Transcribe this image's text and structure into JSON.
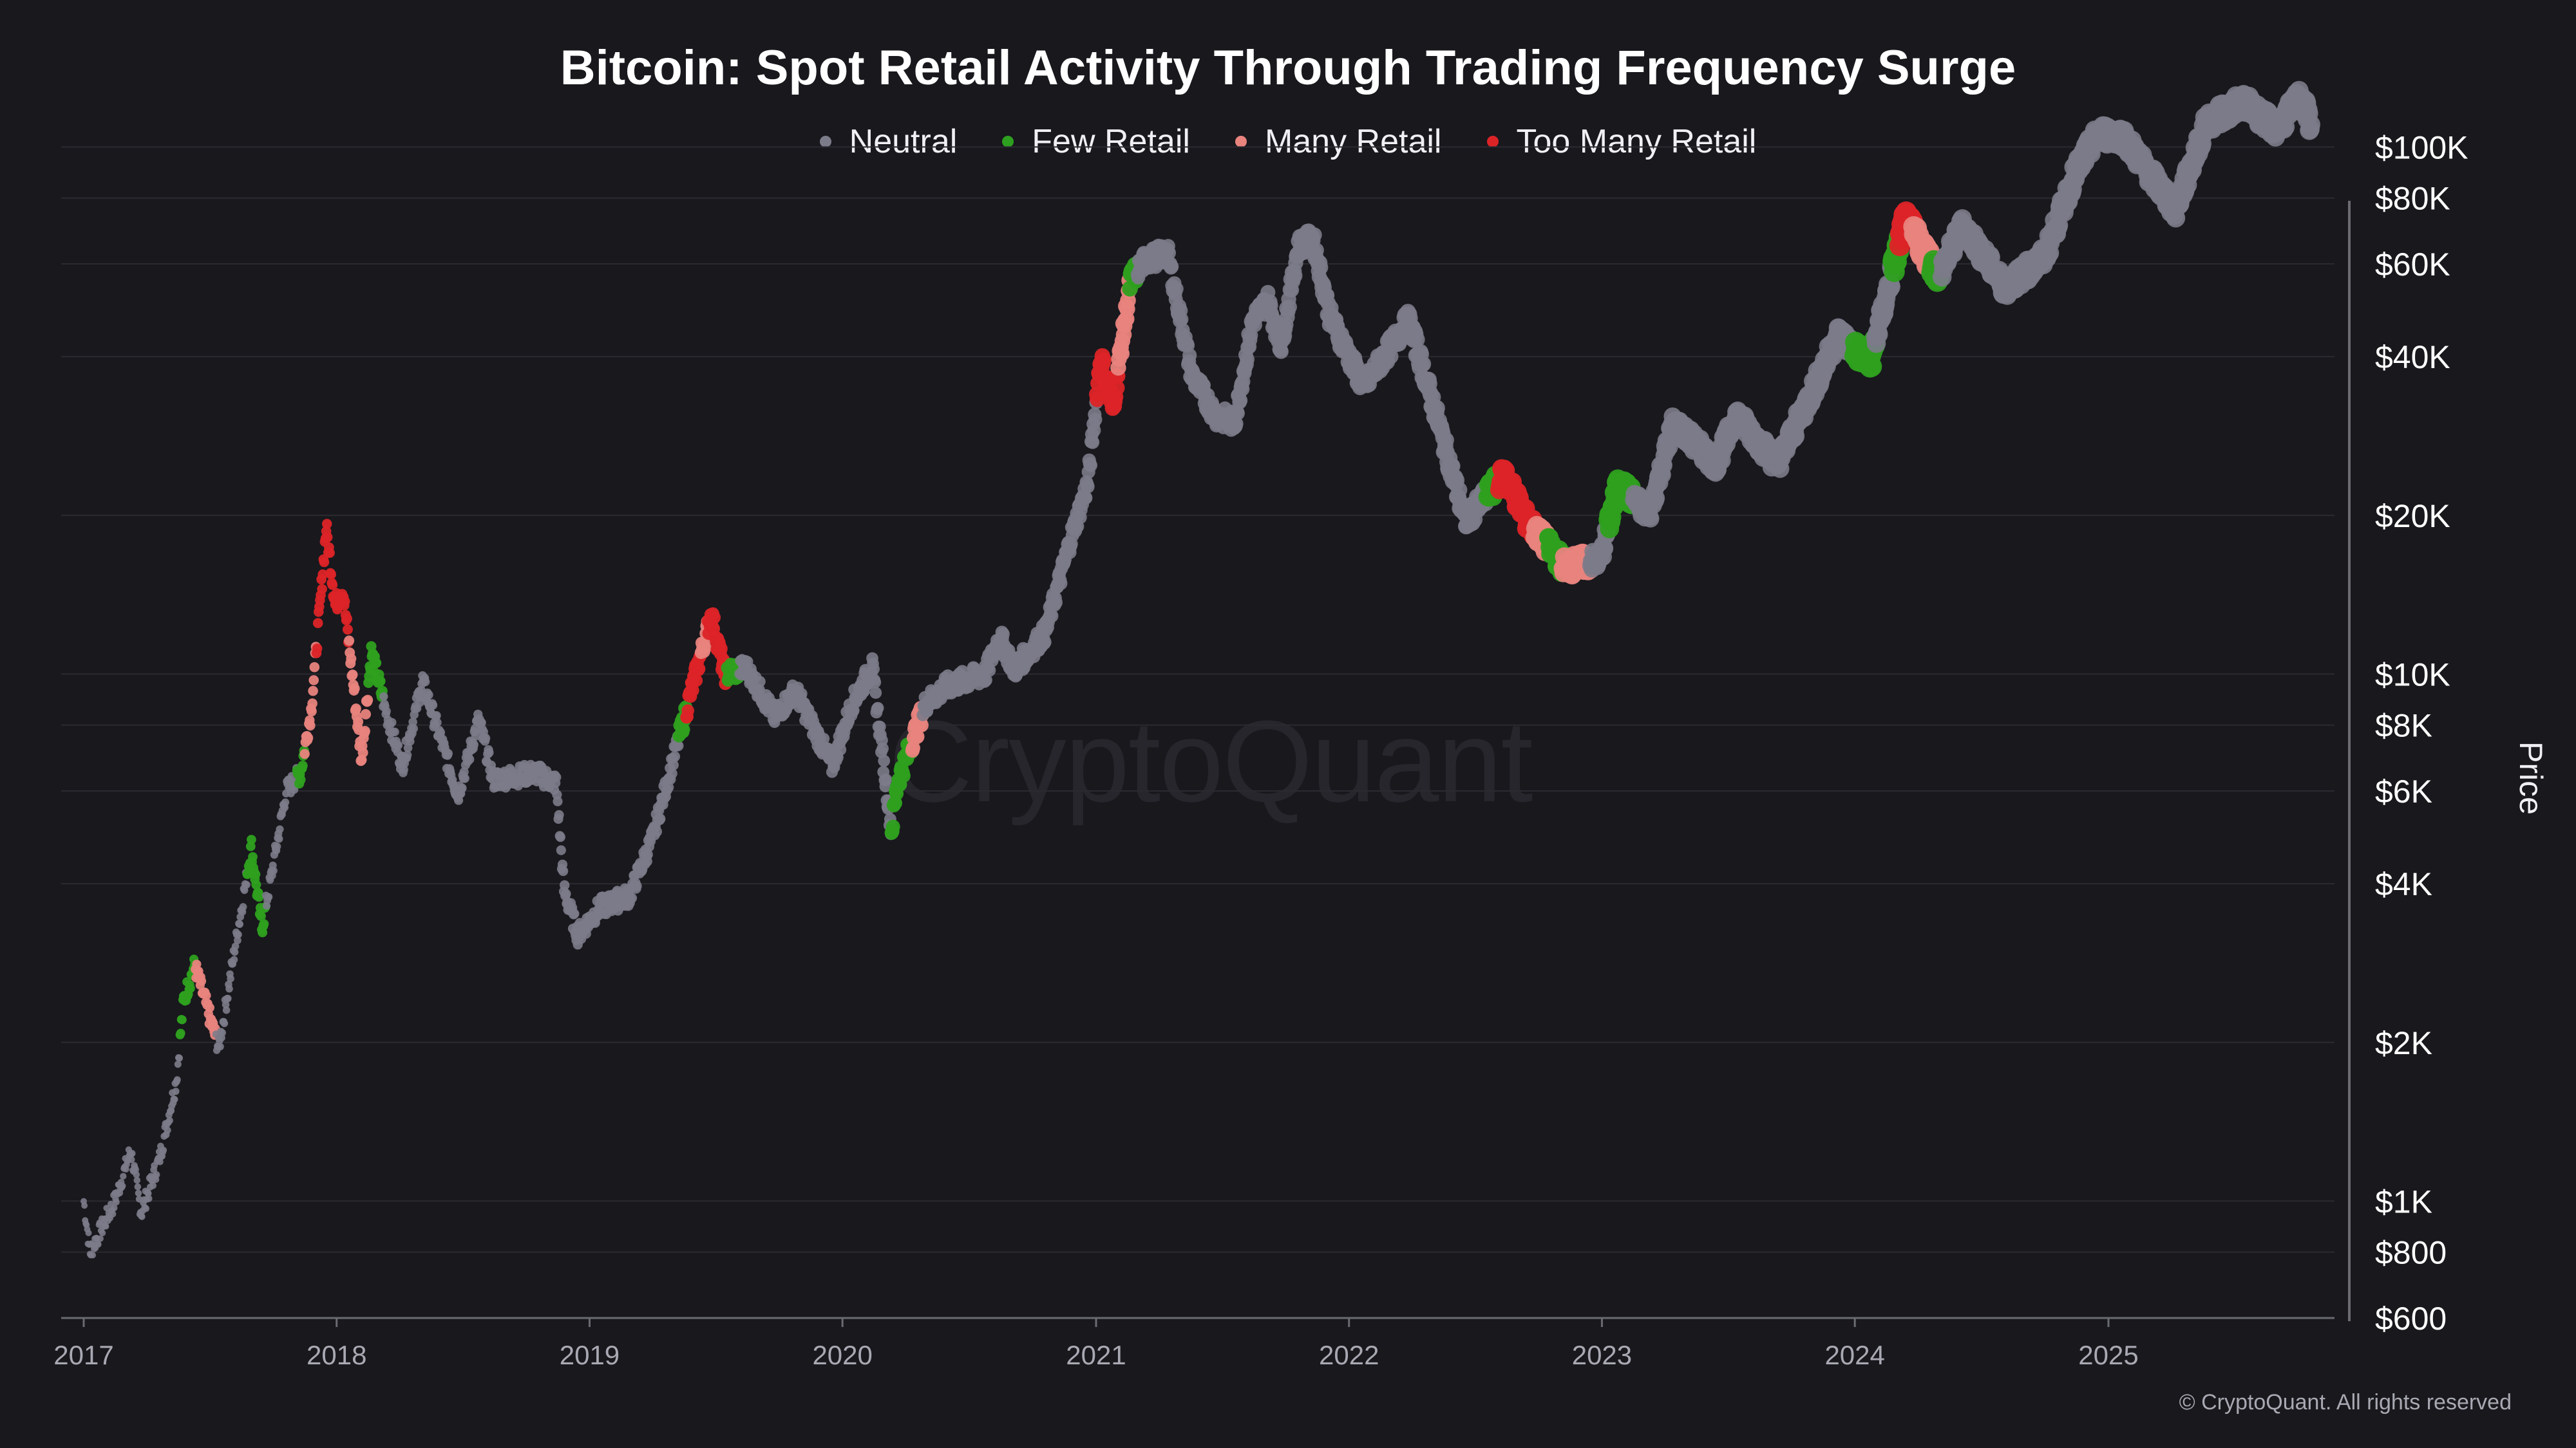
{
  "colors": {
    "background": "#18181d",
    "neutral": "#7c7b89",
    "few_retail": "#2ea01f",
    "many_retail": "#e8837d",
    "too_many_retail": "#dc2427",
    "grid": "#2a2a30",
    "axis": "#6a6a72"
  },
  "watermark": "CryptoQuant",
  "copyright": "© CryptoQuant. All rights reserved",
  "chart_data": {
    "type": "scatter",
    "title": "Bitcoin: Spot Retail Activity Through Trading Frequency Surge",
    "ylabel": "Price",
    "yscale": "log",
    "ylim": [
      600,
      130000
    ],
    "xlim": [
      "2017-01-01",
      "2025-10-31"
    ],
    "x_ticks": [
      "2017",
      "2018",
      "2019",
      "2020",
      "2021",
      "2022",
      "2023",
      "2024",
      "2025"
    ],
    "y_ticks": [
      {
        "value": 600,
        "label": "$600"
      },
      {
        "value": 800,
        "label": "$800"
      },
      {
        "value": 1000,
        "label": "$1K"
      },
      {
        "value": 2000,
        "label": "$2K"
      },
      {
        "value": 4000,
        "label": "$4K"
      },
      {
        "value": 6000,
        "label": "$6K"
      },
      {
        "value": 8000,
        "label": "$8K"
      },
      {
        "value": 10000,
        "label": "$10K"
      },
      {
        "value": 20000,
        "label": "$20K"
      },
      {
        "value": 40000,
        "label": "$40K"
      },
      {
        "value": 60000,
        "label": "$60K"
      },
      {
        "value": 80000,
        "label": "$80K"
      },
      {
        "value": 100000,
        "label": "$100K"
      }
    ],
    "legend_position": "top-center",
    "grid": true,
    "series": [
      {
        "name": "Neutral",
        "color": "#7c7b89"
      },
      {
        "name": "Few Retail",
        "color": "#2ea01f"
      },
      {
        "name": "Many Retail",
        "color": "#e8837d"
      },
      {
        "name": "Too Many Retail",
        "color": "#dc2427"
      }
    ],
    "price_path": [
      [
        "2017-01-01",
        1000
      ],
      [
        "2017-01-10",
        800
      ],
      [
        "2017-02-15",
        1000
      ],
      [
        "2017-03-10",
        1250
      ],
      [
        "2017-03-25",
        950
      ],
      [
        "2017-04-20",
        1200
      ],
      [
        "2017-05-15",
        1700
      ],
      [
        "2017-05-25",
        2400
      ],
      [
        "2017-06-10",
        2800
      ],
      [
        "2017-07-15",
        1950
      ],
      [
        "2017-08-05",
        2900
      ],
      [
        "2017-08-31",
        4700
      ],
      [
        "2017-09-15",
        3300
      ],
      [
        "2017-10-01",
        4300
      ],
      [
        "2017-10-20",
        6000
      ],
      [
        "2017-11-10",
        6500
      ],
      [
        "2017-11-25",
        8500
      ],
      [
        "2017-12-07",
        13000
      ],
      [
        "2017-12-17",
        19000
      ],
      [
        "2017-12-30",
        13500
      ],
      [
        "2018-01-10",
        14500
      ],
      [
        "2018-02-06",
        6900
      ],
      [
        "2018-02-20",
        11000
      ],
      [
        "2018-03-15",
        8300
      ],
      [
        "2018-04-06",
        6700
      ],
      [
        "2018-05-05",
        9700
      ],
      [
        "2018-06-25",
        5900
      ],
      [
        "2018-07-25",
        8200
      ],
      [
        "2018-08-15",
        6300
      ],
      [
        "2018-10-15",
        6500
      ],
      [
        "2018-11-14",
        6200
      ],
      [
        "2018-11-25",
        3900
      ],
      [
        "2018-12-15",
        3200
      ],
      [
        "2019-01-15",
        3600
      ],
      [
        "2019-02-28",
        3800
      ],
      [
        "2019-04-02",
        4900
      ],
      [
        "2019-05-15",
        8000
      ],
      [
        "2019-06-26",
        13000
      ],
      [
        "2019-07-15",
        10000
      ],
      [
        "2019-08-15",
        10300
      ],
      [
        "2019-09-25",
        8300
      ],
      [
        "2019-10-25",
        9300
      ],
      [
        "2019-12-17",
        6700
      ],
      [
        "2020-01-15",
        8800
      ],
      [
        "2020-02-13",
        10300
      ],
      [
        "2020-03-12",
        5000
      ],
      [
        "2020-03-20",
        6200
      ],
      [
        "2020-04-30",
        8800
      ],
      [
        "2020-06-01",
        9500
      ],
      [
        "2020-07-25",
        10000
      ],
      [
        "2020-08-15",
        11800
      ],
      [
        "2020-09-05",
        10200
      ],
      [
        "2020-10-20",
        12000
      ],
      [
        "2020-11-25",
        18000
      ],
      [
        "2020-12-20",
        23000
      ],
      [
        "2021-01-08",
        40000
      ],
      [
        "2021-01-25",
        32000
      ],
      [
        "2021-02-20",
        56000
      ],
      [
        "2021-03-13",
        61000
      ],
      [
        "2021-04-14",
        63000
      ],
      [
        "2021-05-19",
        37000
      ],
      [
        "2021-06-22",
        31000
      ],
      [
        "2021-07-20",
        30000
      ],
      [
        "2021-08-15",
        47000
      ],
      [
        "2021-09-06",
        51000
      ],
      [
        "2021-09-25",
        42000
      ],
      [
        "2021-10-20",
        65000
      ],
      [
        "2021-11-10",
        67000
      ],
      [
        "2021-12-04",
        48000
      ],
      [
        "2022-01-22",
        35000
      ],
      [
        "2022-03-28",
        47000
      ],
      [
        "2022-05-10",
        30000
      ],
      [
        "2022-06-18",
        19500
      ],
      [
        "2022-08-14",
        24000
      ],
      [
        "2022-09-15",
        19500
      ],
      [
        "2022-11-09",
        16000
      ],
      [
        "2022-12-30",
        16500
      ],
      [
        "2023-01-25",
        23000
      ],
      [
        "2023-03-10",
        20000
      ],
      [
        "2023-04-14",
        30000
      ],
      [
        "2023-06-15",
        25000
      ],
      [
        "2023-07-14",
        31000
      ],
      [
        "2023-09-11",
        25000
      ],
      [
        "2023-10-30",
        34000
      ],
      [
        "2023-12-08",
        44000
      ],
      [
        "2024-01-23",
        39000
      ],
      [
        "2024-03-14",
        73000
      ],
      [
        "2024-05-01",
        57000
      ],
      [
        "2024-06-05",
        71000
      ],
      [
        "2024-08-05",
        54000
      ],
      [
        "2024-10-01",
        62000
      ],
      [
        "2024-11-15",
        90000
      ],
      [
        "2024-12-17",
        106000
      ],
      [
        "2025-01-21",
        105000
      ],
      [
        "2025-04-08",
        76000
      ],
      [
        "2025-05-22",
        111000
      ],
      [
        "2025-07-14",
        122000
      ],
      [
        "2025-09-01",
        108000
      ],
      [
        "2025-10-06",
        125000
      ],
      [
        "2025-10-20",
        110000
      ]
    ],
    "signal_ranges": [
      {
        "series": "Few Retail",
        "start": "2017-05-20",
        "end": "2017-06-10"
      },
      {
        "series": "Many Retail",
        "start": "2017-05-25",
        "end": "2017-07-10"
      },
      {
        "series": "Too Many Retail",
        "start": "2017-06-01",
        "end": "2017-06-20"
      },
      {
        "series": "Few Retail",
        "start": "2017-08-25",
        "end": "2017-09-20"
      },
      {
        "series": "Few Retail",
        "start": "2017-11-05",
        "end": "2017-11-15"
      },
      {
        "series": "Many Retail",
        "start": "2017-11-15",
        "end": "2017-12-02"
      },
      {
        "series": "Too Many Retail",
        "start": "2017-12-02",
        "end": "2018-01-18"
      },
      {
        "series": "Many Retail",
        "start": "2018-01-18",
        "end": "2018-02-15"
      },
      {
        "series": "Few Retail",
        "start": "2018-02-15",
        "end": "2018-03-08"
      },
      {
        "series": "Few Retail",
        "start": "2019-05-10",
        "end": "2019-05-20"
      },
      {
        "series": "Too Many Retail",
        "start": "2019-05-20",
        "end": "2019-06-10"
      },
      {
        "series": "Many Retail",
        "start": "2019-06-10",
        "end": "2019-06-20"
      },
      {
        "series": "Too Many Retail",
        "start": "2019-06-20",
        "end": "2019-07-18"
      },
      {
        "series": "Few Retail",
        "start": "2019-07-18",
        "end": "2019-08-05"
      },
      {
        "series": "Few Retail",
        "start": "2020-03-12",
        "end": "2020-04-10"
      },
      {
        "series": "Many Retail",
        "start": "2020-04-10",
        "end": "2020-04-25"
      },
      {
        "series": "Too Many Retail",
        "start": "2021-01-02",
        "end": "2021-02-01"
      },
      {
        "series": "Many Retail",
        "start": "2021-02-01",
        "end": "2021-02-18"
      },
      {
        "series": "Few Retail",
        "start": "2021-02-18",
        "end": "2021-03-01"
      },
      {
        "series": "Few Retail",
        "start": "2022-07-20",
        "end": "2022-08-05"
      },
      {
        "series": "Too Many Retail",
        "start": "2022-08-05",
        "end": "2022-09-25"
      },
      {
        "series": "Many Retail",
        "start": "2022-09-25",
        "end": "2022-10-15"
      },
      {
        "series": "Few Retail",
        "start": "2022-10-15",
        "end": "2022-11-05"
      },
      {
        "series": "Many Retail",
        "start": "2022-11-05",
        "end": "2022-12-15"
      },
      {
        "series": "Few Retail",
        "start": "2023-01-10",
        "end": "2023-02-15"
      },
      {
        "series": "Few Retail",
        "start": "2024-01-01",
        "end": "2024-01-30"
      },
      {
        "series": "Few Retail",
        "start": "2024-02-25",
        "end": "2024-03-05"
      },
      {
        "series": "Too Many Retail",
        "start": "2024-03-05",
        "end": "2024-03-25"
      },
      {
        "series": "Many Retail",
        "start": "2024-03-25",
        "end": "2024-04-20"
      },
      {
        "series": "Few Retail",
        "start": "2024-04-20",
        "end": "2024-05-05"
      }
    ]
  }
}
